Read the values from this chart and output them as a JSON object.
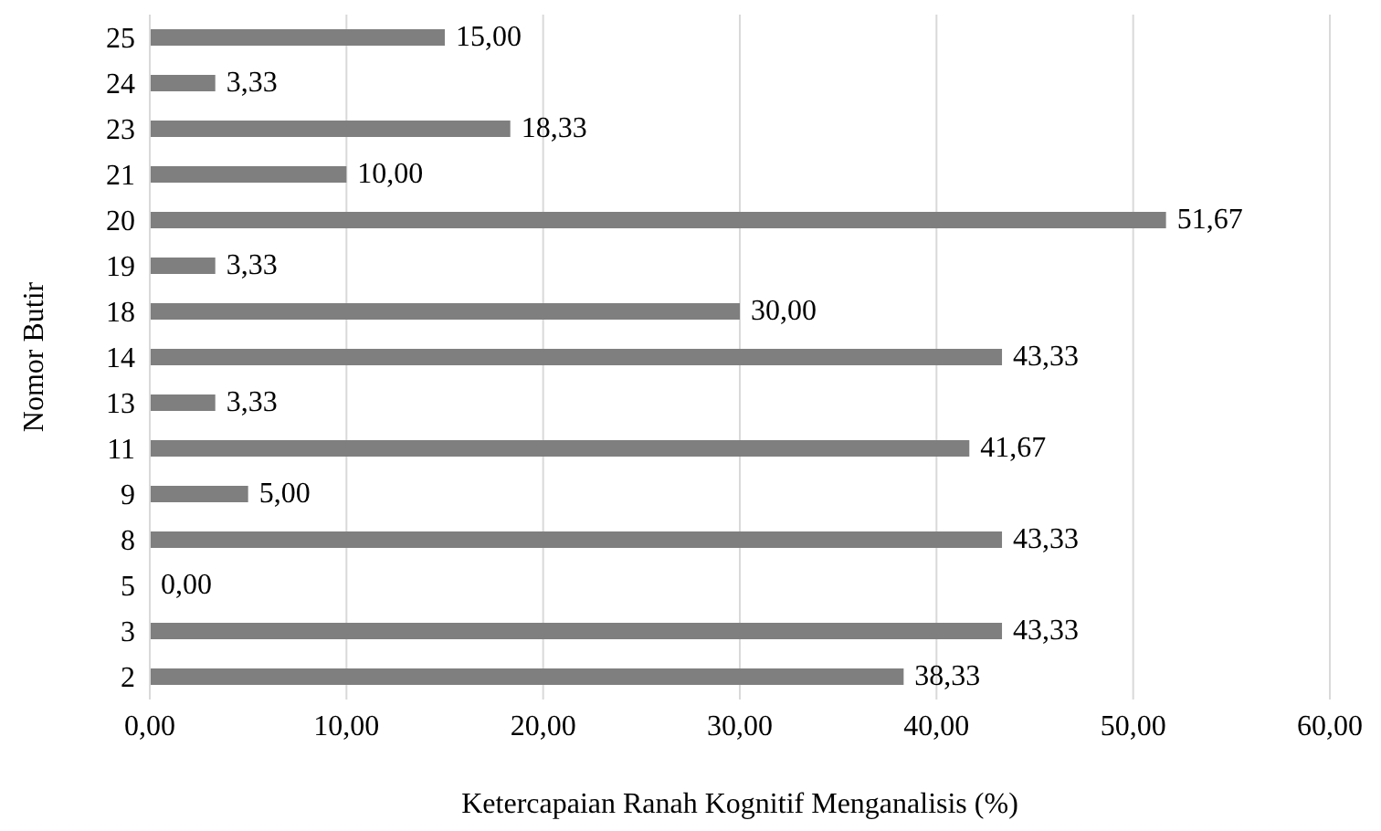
{
  "chart_data": {
    "type": "bar",
    "orientation": "horizontal",
    "xlabel": "Ketercapaian Ranah Kognitif Menganalisis (%)",
    "ylabel": "Nomor Butir",
    "categories": [
      "25",
      "24",
      "23",
      "21",
      "20",
      "19",
      "18",
      "14",
      "13",
      "11",
      "9",
      "8",
      "5",
      "3",
      "2"
    ],
    "values": [
      15,
      3.33,
      18.33,
      10,
      51.67,
      3.33,
      30,
      43.33,
      3.33,
      41.67,
      5,
      43.33,
      0,
      43.33,
      38.33
    ],
    "value_labels": [
      "15,00",
      "3,33",
      "18,33",
      "10,00",
      "51,67",
      "3,33",
      "30,00",
      "43,33",
      "3,33",
      "41,67",
      "5,00",
      "43,33",
      "0,00",
      "43,33",
      "38,33"
    ],
    "color": "#7f7f7f",
    "xlim": [
      0,
      60
    ],
    "xticks": [
      {
        "value": 0,
        "label": "0,00"
      },
      {
        "value": 10,
        "label": "10,00"
      },
      {
        "value": 20,
        "label": "20,00"
      },
      {
        "value": 30,
        "label": "30,00"
      },
      {
        "value": 40,
        "label": "40,00"
      },
      {
        "value": 50,
        "label": "50,00"
      },
      {
        "value": 60,
        "label": "60,00"
      }
    ],
    "grid": "x",
    "legend": false
  }
}
